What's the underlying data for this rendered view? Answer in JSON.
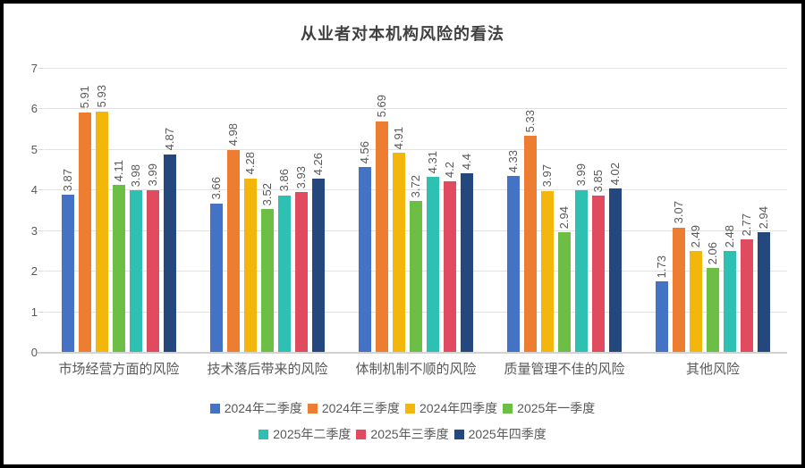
{
  "title": "从业者对本机构风险的看法",
  "chart_data": {
    "type": "bar",
    "title": "从业者对本机构风险的看法",
    "categories": [
      "市场经营方面的风险",
      "技术落后带来的风险",
      "体制机制不顺的风险",
      "质量管理不佳的风险",
      "其他风险"
    ],
    "series": [
      {
        "name": "2024年二季度",
        "color": "#4472C4",
        "values": [
          3.87,
          3.66,
          4.56,
          4.33,
          1.73
        ]
      },
      {
        "name": "2024年三季度",
        "color": "#ED7D31",
        "values": [
          5.91,
          4.98,
          5.69,
          5.33,
          3.07
        ]
      },
      {
        "name": "2024年四季度",
        "color": "#F2B70A",
        "values": [
          5.93,
          4.28,
          4.91,
          3.97,
          2.49
        ]
      },
      {
        "name": "2025年一季度",
        "color": "#6CBE45",
        "values": [
          4.11,
          3.52,
          3.72,
          2.94,
          2.06
        ]
      },
      {
        "name": "2025年二季度",
        "color": "#2EC0B2",
        "values": [
          3.98,
          3.86,
          4.31,
          3.99,
          2.48
        ]
      },
      {
        "name": "2025年三季度",
        "color": "#E14B5F",
        "values": [
          3.99,
          3.93,
          4.2,
          3.85,
          2.77
        ]
      },
      {
        "name": "2025年四季度",
        "color": "#24477E",
        "values": [
          4.87,
          4.26,
          4.4,
          4.02,
          2.94
        ]
      }
    ],
    "ylim": [
      0,
      7
    ],
    "yticks": [
      0,
      1,
      2,
      3,
      4,
      5,
      6,
      7
    ],
    "grid": true,
    "value_labels": "rotated-90",
    "legend_position": "bottom",
    "legend_rows": [
      [
        0,
        1,
        2,
        3
      ],
      [
        4,
        5,
        6
      ]
    ],
    "colors": {
      "text": "#595959",
      "title_text": "#404040",
      "gridline": "#e2e2e2",
      "axis_line": "#d2d2d2",
      "background": "#ffffff",
      "frame_border": "#000000"
    }
  }
}
